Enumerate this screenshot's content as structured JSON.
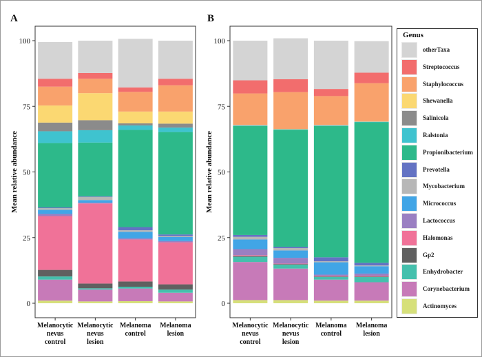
{
  "chart_data": [
    {
      "type": "bar",
      "stacked": true,
      "panel_label": "A",
      "ylabel": "Mean relative abundance",
      "xlabel": "",
      "ylim": [
        0,
        100
      ],
      "yticks": [
        "0",
        "25",
        "50",
        "75",
        "100"
      ],
      "categories": [
        [
          "Melanocytic",
          "nevus",
          "control"
        ],
        [
          "Melanocytic",
          "nevus",
          "lesion"
        ],
        [
          "Melanoma",
          "control"
        ],
        [
          "Melanoma",
          "lesion"
        ]
      ],
      "series": [
        {
          "name": "Actinomyces",
          "values": [
            1.0,
            0.7,
            0.8,
            0.7
          ]
        },
        {
          "name": "Corynebacterium",
          "values": [
            8.0,
            4.5,
            4.8,
            3.3
          ]
        },
        {
          "name": "Enhydrobacter",
          "values": [
            1.2,
            0.5,
            0.7,
            1.2
          ]
        },
        {
          "name": "Gp2",
          "values": [
            2.5,
            1.8,
            2.0,
            2.0
          ]
        },
        {
          "name": "Halomonas",
          "values": [
            20.5,
            30.5,
            16.0,
            16.0
          ]
        },
        {
          "name": "Lactococcus",
          "values": [
            0.8,
            0.3,
            0.4,
            0.5
          ]
        },
        {
          "name": "Micrococcus",
          "values": [
            1.6,
            1.0,
            2.5,
            1.5
          ]
        },
        {
          "name": "Mycobacterium",
          "values": [
            0.6,
            1.2,
            0.6,
            0.4
          ]
        },
        {
          "name": "Prevotella",
          "values": [
            0.3,
            0.2,
            1.2,
            0.6
          ]
        },
        {
          "name": "Propionibacterium",
          "values": [
            24.5,
            20.5,
            37.0,
            39.0
          ]
        },
        {
          "name": "Ralstonia",
          "values": [
            4.5,
            4.7,
            1.7,
            1.7
          ]
        },
        {
          "name": "Salinicola",
          "values": [
            3.3,
            3.8,
            0.8,
            1.5
          ]
        },
        {
          "name": "Shewanella",
          "values": [
            6.5,
            10.3,
            4.5,
            4.6
          ]
        },
        {
          "name": "Staphylococcus",
          "values": [
            7.2,
            5.5,
            7.5,
            10.0
          ]
        },
        {
          "name": "Streptococcus",
          "values": [
            3.0,
            2.2,
            1.7,
            2.5
          ]
        },
        {
          "name": "otherTaxa",
          "values": [
            14.0,
            12.3,
            18.5,
            14.5
          ]
        }
      ]
    },
    {
      "type": "bar",
      "stacked": true,
      "panel_label": "B",
      "ylabel": "Mean relative abundance",
      "xlabel": "",
      "ylim": [
        0,
        100
      ],
      "yticks": [
        "0",
        "25",
        "50",
        "75",
        "100"
      ],
      "categories": [
        [
          "Melanocytic",
          "nevus",
          "control"
        ],
        [
          "Melanocytic",
          "nevus",
          "lesion"
        ],
        [
          "Melanoma",
          "control"
        ],
        [
          "Melanoma",
          "lesion"
        ]
      ],
      "series": [
        {
          "name": "Actinomyces",
          "values": [
            1.2,
            1.2,
            1.0,
            1.0
          ]
        },
        {
          "name": "Corynebacterium",
          "values": [
            14.5,
            12.0,
            8.0,
            7.0
          ]
        },
        {
          "name": "Enhydrobacter",
          "values": [
            2.0,
            1.5,
            1.0,
            2.0
          ]
        },
        {
          "name": "Gp2",
          "values": [
            0.3,
            0.2,
            0.2,
            0.2
          ]
        },
        {
          "name": "Halomonas",
          "values": [
            0.3,
            0.2,
            0.2,
            0.3
          ]
        },
        {
          "name": "Lactococcus",
          "values": [
            2.3,
            2.2,
            0.5,
            0.8
          ]
        },
        {
          "name": "Micrococcus",
          "values": [
            3.7,
            2.8,
            4.7,
            2.8
          ]
        },
        {
          "name": "Mycobacterium",
          "values": [
            1.0,
            0.9,
            0.4,
            0.3
          ]
        },
        {
          "name": "Prevotella",
          "values": [
            0.7,
            0.5,
            1.5,
            1.0
          ]
        },
        {
          "name": "Propionibacterium",
          "values": [
            41.5,
            44.5,
            50.0,
            53.5
          ]
        },
        {
          "name": "Ralstonia",
          "values": [
            0.2,
            0.2,
            0.2,
            0.2
          ]
        },
        {
          "name": "Salinicola",
          "values": [
            0.1,
            0.1,
            0.1,
            0.1
          ]
        },
        {
          "name": "Shewanella",
          "values": [
            0.1,
            0.1,
            0.1,
            0.1
          ]
        },
        {
          "name": "Staphylococcus",
          "values": [
            12.0,
            14.0,
            11.0,
            14.5
          ]
        },
        {
          "name": "Streptococcus",
          "values": [
            5.0,
            4.9,
            2.7,
            4.0
          ]
        },
        {
          "name": "otherTaxa",
          "values": [
            15.1,
            15.6,
            18.4,
            12.0
          ]
        }
      ]
    }
  ],
  "legend": {
    "title": "Genus",
    "placement": "right",
    "items": [
      {
        "name": "otherTaxa",
        "color": "#d4d4d4"
      },
      {
        "name": "Streptococcus",
        "color": "#f26d6d"
      },
      {
        "name": "Staphylococcus",
        "color": "#f9a26c"
      },
      {
        "name": "Shewanella",
        "color": "#fbd872"
      },
      {
        "name": "Salinicola",
        "color": "#8b8b8b"
      },
      {
        "name": "Ralstonia",
        "color": "#3fc3cf"
      },
      {
        "name": "Propionibacterium",
        "color": "#2db98a"
      },
      {
        "name": "Prevotella",
        "color": "#6372c3"
      },
      {
        "name": "Mycobacterium",
        "color": "#b7b7b7"
      },
      {
        "name": "Micrococcus",
        "color": "#41a5e6"
      },
      {
        "name": "Lactococcus",
        "color": "#9a7fc2"
      },
      {
        "name": "Halomonas",
        "color": "#f07298"
      },
      {
        "name": "Gp2",
        "color": "#606060"
      },
      {
        "name": "Enhydrobacter",
        "color": "#45c0ad"
      },
      {
        "name": "Corynebacterium",
        "color": "#c77ab8"
      },
      {
        "name": "Actinomyces",
        "color": "#d6e07a"
      }
    ]
  }
}
